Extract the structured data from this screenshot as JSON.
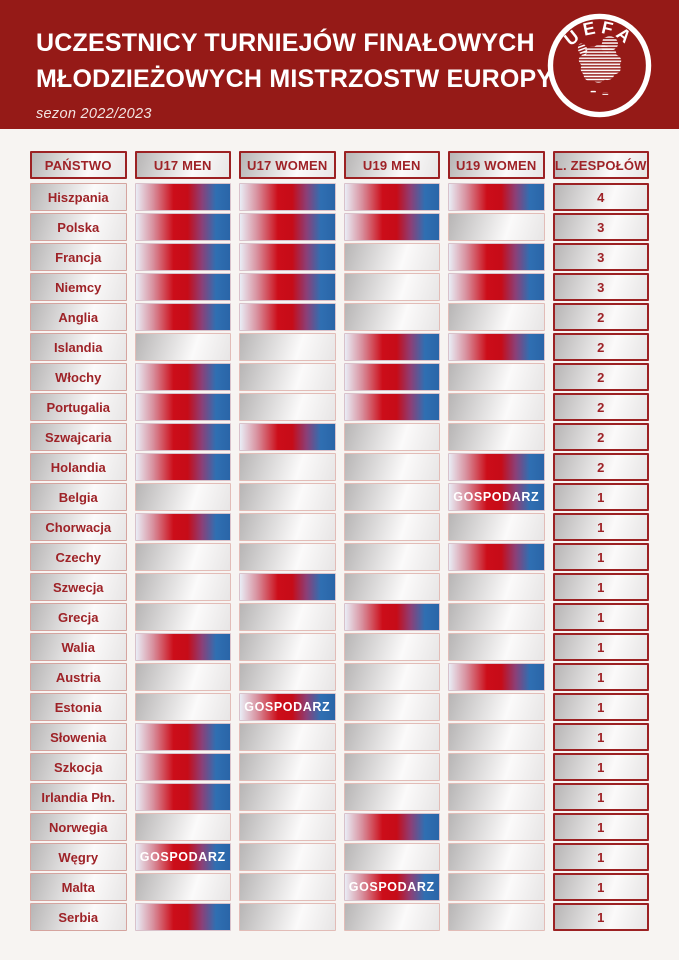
{
  "header": {
    "title_line1": "UCZESTNICY TURNIEJÓW FINAŁOWYCH",
    "title_line2": "MŁODZIEŻOWYCH MISTRZOSTW EUROPY",
    "season": "sezon 2022/2023",
    "logo_text": "UEFA"
  },
  "colors": {
    "banner_red": "#951a17",
    "text_red": "#9e2227",
    "strong_border_red": "#9c2123",
    "light_border_pink": "#e2bcb7",
    "participant_red": "#cc0d19",
    "participant_blue": "#2f6fb2",
    "silver_gray": "#b7b5b5",
    "page_background": "#f7f4f2"
  },
  "table": {
    "columns": [
      "PAŃSTWO",
      "U17 MEN",
      "U17 WOMEN",
      "U19 MEN",
      "U19 WOMEN",
      "L. ZESPOŁÓW"
    ],
    "host_label": "GOSPODARZ",
    "rows": [
      {
        "country": "Hiszpania",
        "cells": [
          "in",
          "in",
          "in",
          "in"
        ],
        "count": "4"
      },
      {
        "country": "Polska",
        "cells": [
          "in",
          "in",
          "in",
          "out"
        ],
        "count": "3"
      },
      {
        "country": "Francja",
        "cells": [
          "in",
          "in",
          "out",
          "in"
        ],
        "count": "3"
      },
      {
        "country": "Niemcy",
        "cells": [
          "in",
          "in",
          "out",
          "in"
        ],
        "count": "3"
      },
      {
        "country": "Anglia",
        "cells": [
          "in",
          "in",
          "out",
          "out"
        ],
        "count": "2"
      },
      {
        "country": "Islandia",
        "cells": [
          "out",
          "out",
          "in",
          "in"
        ],
        "count": "2"
      },
      {
        "country": "Włochy",
        "cells": [
          "in",
          "out",
          "in",
          "out"
        ],
        "count": "2"
      },
      {
        "country": "Portugalia",
        "cells": [
          "in",
          "out",
          "in",
          "out"
        ],
        "count": "2"
      },
      {
        "country": "Szwajcaria",
        "cells": [
          "in",
          "in",
          "out",
          "out"
        ],
        "count": "2"
      },
      {
        "country": "Holandia",
        "cells": [
          "in",
          "out",
          "out",
          "in"
        ],
        "count": "2"
      },
      {
        "country": "Belgia",
        "cells": [
          "out",
          "out",
          "out",
          "host"
        ],
        "count": "1"
      },
      {
        "country": "Chorwacja",
        "cells": [
          "in",
          "out",
          "out",
          "out"
        ],
        "count": "1"
      },
      {
        "country": "Czechy",
        "cells": [
          "out",
          "out",
          "out",
          "in"
        ],
        "count": "1"
      },
      {
        "country": "Szwecja",
        "cells": [
          "out",
          "in",
          "out",
          "out"
        ],
        "count": "1"
      },
      {
        "country": "Grecja",
        "cells": [
          "out",
          "out",
          "in",
          "out"
        ],
        "count": "1"
      },
      {
        "country": "Walia",
        "cells": [
          "in",
          "out",
          "out",
          "out"
        ],
        "count": "1"
      },
      {
        "country": "Austria",
        "cells": [
          "out",
          "out",
          "out",
          "in"
        ],
        "count": "1"
      },
      {
        "country": "Estonia",
        "cells": [
          "out",
          "host",
          "out",
          "out"
        ],
        "count": "1"
      },
      {
        "country": "Słowenia",
        "cells": [
          "in",
          "out",
          "out",
          "out"
        ],
        "count": "1"
      },
      {
        "country": "Szkocja",
        "cells": [
          "in",
          "out",
          "out",
          "out"
        ],
        "count": "1"
      },
      {
        "country": "Irlandia Płn.",
        "cells": [
          "in",
          "out",
          "out",
          "out"
        ],
        "count": "1"
      },
      {
        "country": "Norwegia",
        "cells": [
          "out",
          "out",
          "in",
          "out"
        ],
        "count": "1"
      },
      {
        "country": "Węgry",
        "cells": [
          "host",
          "out",
          "out",
          "out"
        ],
        "count": "1"
      },
      {
        "country": "Malta",
        "cells": [
          "out",
          "out",
          "host",
          "out"
        ],
        "count": "1"
      },
      {
        "country": "Serbia",
        "cells": [
          "in",
          "out",
          "out",
          "out"
        ],
        "count": "1"
      }
    ]
  },
  "chart_data": {
    "type": "table",
    "title": "UCZESTNICY TURNIEJÓW FINAŁOWYCH MŁODZIEŻOWYCH MISTRZOSTW EUROPY",
    "subtitle": "sezon 2022/2023",
    "columns": [
      "PAŃSTWO",
      "U17 MEN",
      "U17 WOMEN",
      "U19 MEN",
      "U19 WOMEN",
      "L. ZESPOŁÓW"
    ],
    "cell_encoding": {
      "in": "uczestnik (red-blue gradient)",
      "host": "GOSPODARZ",
      "out": "brak udziału (silver)"
    },
    "rows": [
      [
        "Hiszpania",
        "in",
        "in",
        "in",
        "in",
        4
      ],
      [
        "Polska",
        "in",
        "in",
        "in",
        "out",
        3
      ],
      [
        "Francja",
        "in",
        "in",
        "out",
        "in",
        3
      ],
      [
        "Niemcy",
        "in",
        "in",
        "out",
        "in",
        3
      ],
      [
        "Anglia",
        "in",
        "in",
        "out",
        "out",
        2
      ],
      [
        "Islandia",
        "out",
        "out",
        "in",
        "in",
        2
      ],
      [
        "Włochy",
        "in",
        "out",
        "in",
        "out",
        2
      ],
      [
        "Portugalia",
        "in",
        "out",
        "in",
        "out",
        2
      ],
      [
        "Szwajcaria",
        "in",
        "in",
        "out",
        "out",
        2
      ],
      [
        "Holandia",
        "in",
        "out",
        "out",
        "in",
        2
      ],
      [
        "Belgia",
        "out",
        "out",
        "out",
        "host",
        1
      ],
      [
        "Chorwacja",
        "in",
        "out",
        "out",
        "out",
        1
      ],
      [
        "Czechy",
        "out",
        "out",
        "out",
        "in",
        1
      ],
      [
        "Szwecja",
        "out",
        "in",
        "out",
        "out",
        1
      ],
      [
        "Grecja",
        "out",
        "out",
        "in",
        "out",
        1
      ],
      [
        "Walia",
        "in",
        "out",
        "out",
        "out",
        1
      ],
      [
        "Austria",
        "out",
        "out",
        "out",
        "in",
        1
      ],
      [
        "Estonia",
        "out",
        "host",
        "out",
        "out",
        1
      ],
      [
        "Słowenia",
        "in",
        "out",
        "out",
        "out",
        1
      ],
      [
        "Szkocja",
        "in",
        "out",
        "out",
        "out",
        1
      ],
      [
        "Irlandia Płn.",
        "in",
        "out",
        "out",
        "out",
        1
      ],
      [
        "Norwegia",
        "out",
        "out",
        "in",
        "out",
        1
      ],
      [
        "Węgry",
        "host",
        "out",
        "out",
        "out",
        1
      ],
      [
        "Malta",
        "out",
        "out",
        "host",
        "out",
        1
      ],
      [
        "Serbia",
        "in",
        "out",
        "out",
        "out",
        1
      ]
    ]
  }
}
